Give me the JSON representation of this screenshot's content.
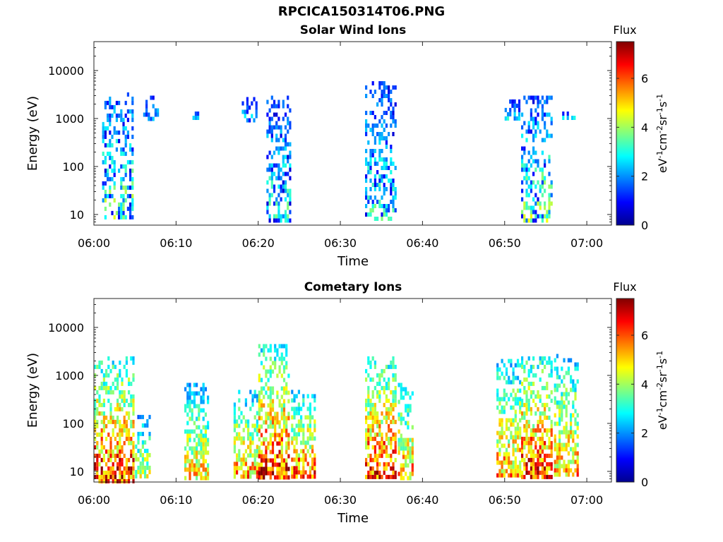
{
  "figure": {
    "title": "RPCICA150314T06.PNG"
  },
  "chart_data": [
    {
      "type": "heatmap",
      "title": "Solar Wind Ions",
      "xlabel": "Time",
      "ylabel": "Energy (eV)",
      "y_scale": "log",
      "xlim": [
        "06:00",
        "07:03"
      ],
      "ylim": [
        6,
        40000
      ],
      "x_ticks": [
        "06:00",
        "06:10",
        "06:20",
        "06:30",
        "06:40",
        "06:50",
        "07:00"
      ],
      "y_ticks": [
        "10",
        "100",
        "1000",
        "10000"
      ],
      "colorbar": {
        "title": "Flux",
        "label": "eV-1cm-2sr-1s-1",
        "label_parts": [
          "eV",
          "-1",
          "cm",
          "-2",
          "sr",
          "-1",
          "s",
          "-1"
        ],
        "range": [
          0,
          7.5
        ],
        "ticks": [
          "0",
          "2",
          "4",
          "6"
        ],
        "colormap": "jet"
      },
      "grid": false,
      "bursts": [
        {
          "start": "06:01",
          "end": "06:04",
          "e_low": 8,
          "e_high": 3500,
          "peak_flux": 4.2
        },
        {
          "start": "06:06",
          "end": "06:07",
          "e_low": 1000,
          "e_high": 3000,
          "peak_flux": 3.0
        },
        {
          "start": "06:12",
          "end": "06:12",
          "e_low": 1100,
          "e_high": 1400,
          "peak_flux": 3.0
        },
        {
          "start": "06:18",
          "end": "06:19",
          "e_low": 1000,
          "e_high": 2800,
          "peak_flux": 3.0
        },
        {
          "start": "06:21",
          "end": "06:23",
          "e_low": 8,
          "e_high": 3000,
          "peak_flux": 3.6
        },
        {
          "start": "06:33",
          "end": "06:36",
          "e_low": 8,
          "e_high": 6000,
          "peak_flux": 3.6
        },
        {
          "start": "06:50",
          "end": "06:51",
          "e_low": 1000,
          "e_high": 2500,
          "peak_flux": 3.0
        },
        {
          "start": "06:52",
          "end": "06:55",
          "e_low": 8,
          "e_high": 3000,
          "peak_flux": 4.2
        },
        {
          "start": "06:57",
          "end": "06:58",
          "e_low": 1100,
          "e_high": 1400,
          "peak_flux": 3.0
        }
      ]
    },
    {
      "type": "heatmap",
      "title": "Cometary Ions",
      "xlabel": "Time",
      "ylabel": "Energy (eV)",
      "y_scale": "log",
      "xlim": [
        "06:00",
        "07:03"
      ],
      "ylim": [
        6,
        40000
      ],
      "x_ticks": [
        "06:00",
        "06:10",
        "06:20",
        "06:30",
        "06:40",
        "06:50",
        "07:00"
      ],
      "y_ticks": [
        "10",
        "100",
        "1000",
        "10000"
      ],
      "colorbar": {
        "title": "Flux",
        "label": "eV-1cm-2sr-1s-1",
        "label_parts": [
          "eV",
          "-1",
          "cm",
          "-2",
          "sr",
          "-1",
          "s",
          "-1"
        ],
        "range": [
          0,
          7.5
        ],
        "ticks": [
          "0",
          "2",
          "4",
          "6"
        ],
        "colormap": "jet"
      },
      "grid": false,
      "bursts": [
        {
          "start": "06:00",
          "end": "06:04",
          "e_low": 6,
          "e_high": 2500,
          "peak_flux": 7.0
        },
        {
          "start": "06:05",
          "end": "06:06",
          "e_low": 8,
          "e_high": 150,
          "peak_flux": 5.0
        },
        {
          "start": "06:11",
          "end": "06:13",
          "e_low": 8,
          "e_high": 700,
          "peak_flux": 5.5
        },
        {
          "start": "06:17",
          "end": "06:19",
          "e_low": 8,
          "e_high": 500,
          "peak_flux": 6.0
        },
        {
          "start": "06:20",
          "end": "06:23",
          "e_low": 8,
          "e_high": 4500,
          "peak_flux": 7.0
        },
        {
          "start": "06:24",
          "end": "06:26",
          "e_low": 8,
          "e_high": 500,
          "peak_flux": 6.5
        },
        {
          "start": "06:33",
          "end": "06:36",
          "e_low": 8,
          "e_high": 2500,
          "peak_flux": 7.0
        },
        {
          "start": "06:37",
          "end": "06:38",
          "e_low": 8,
          "e_high": 700,
          "peak_flux": 6.0
        },
        {
          "start": "06:49",
          "end": "06:51",
          "e_low": 8,
          "e_high": 2200,
          "peak_flux": 6.0
        },
        {
          "start": "06:52",
          "end": "06:55",
          "e_low": 8,
          "e_high": 2500,
          "peak_flux": 7.0
        },
        {
          "start": "06:56",
          "end": "06:58",
          "e_low": 8,
          "e_high": 2800,
          "peak_flux": 6.0
        }
      ]
    }
  ]
}
